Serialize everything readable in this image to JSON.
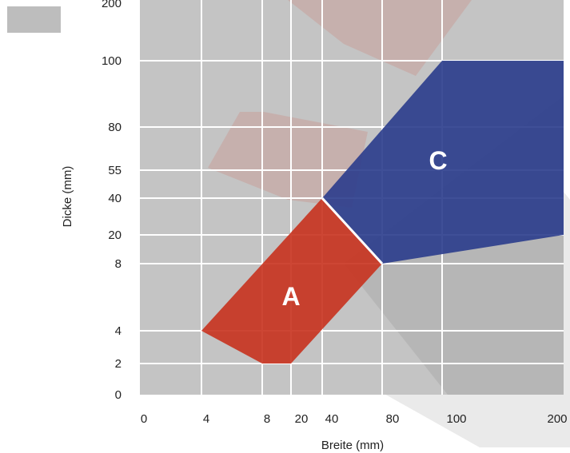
{
  "chart_data": {
    "type": "area",
    "title": "",
    "xlabel": "Breite (mm)",
    "ylabel": "Dicke (mm)",
    "x_ticks": [
      "0",
      "4",
      "8",
      "20",
      "40",
      "80",
      "100",
      "200"
    ],
    "y_ticks": [
      "0",
      "2",
      "4",
      "8",
      "20",
      "40",
      "55",
      "80",
      "100",
      "200"
    ],
    "xlim": [
      "0",
      "200"
    ],
    "ylim": [
      "0",
      "200"
    ],
    "grid": true,
    "series": [
      {
        "name": "A",
        "color": "#c8321e",
        "points": [
          {
            "x": "4",
            "y": "4"
          },
          {
            "x": "8",
            "y": "2"
          },
          {
            "x": "20",
            "y": "2"
          },
          {
            "x": "80",
            "y": "8"
          },
          {
            "x": "40",
            "y": "40"
          }
        ]
      },
      {
        "name": "C",
        "color": "#2a3c8c",
        "points": [
          {
            "x": "40",
            "y": "40"
          },
          {
            "x": "80",
            "y": "8"
          },
          {
            "x": "200",
            "y": "20"
          },
          {
            "x": "200",
            "y": "100"
          },
          {
            "x": "100",
            "y": "100"
          }
        ]
      }
    ],
    "legend": {
      "swatch_color": "#bdbdbd"
    }
  }
}
